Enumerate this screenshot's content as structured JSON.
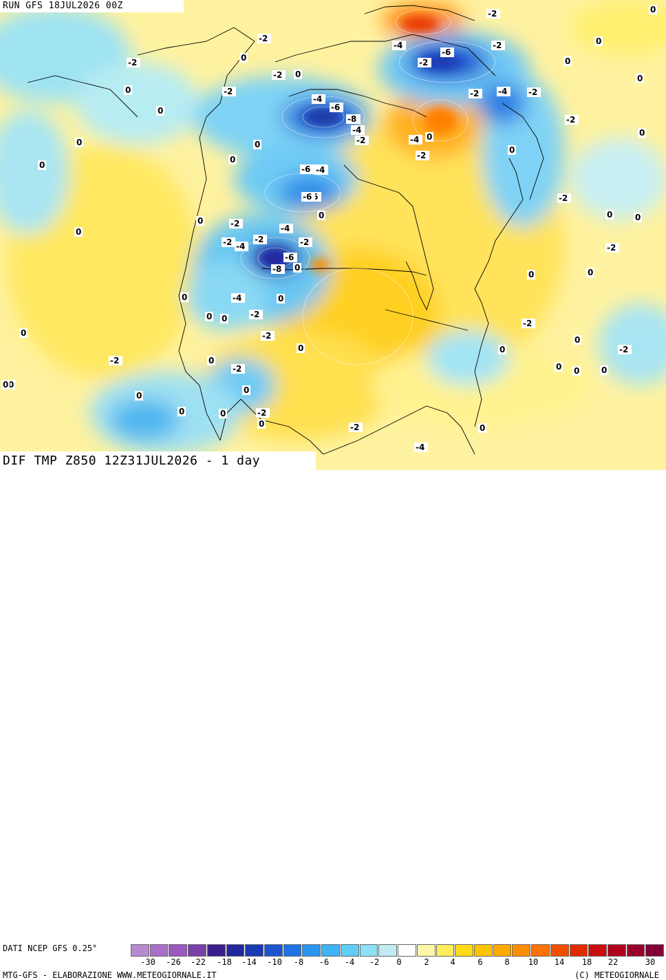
{
  "header": {
    "run": "RUN GFS 18JUL2026 00Z"
  },
  "footer": {
    "title": "DIF TMP Z850 12Z31JUL2026 - 1 day",
    "source": "DATI NCEP GFS 0.25°",
    "credit_left": "MTG-GFS - ELABORAZIONE WWW.METEOGIORNALE.IT",
    "credit_right": "(C) METEOGIORNALE"
  },
  "legend": {
    "colors": [
      "#b58ad1",
      "#a96fc9",
      "#9a58bd",
      "#7a3fa8",
      "#3a1f8f",
      "#24289e",
      "#1a3ab4",
      "#1d55d1",
      "#1f73e3",
      "#2a96f0",
      "#3fb3f5",
      "#5fcdf7",
      "#8ee0f6",
      "#c1ecf3",
      "#ffffff",
      "#fff7a8",
      "#ffee59",
      "#ffdb16",
      "#ffc400",
      "#ffaa00",
      "#ff8f00",
      "#ff7100",
      "#f24e00",
      "#e22c00",
      "#c90f0f",
      "#b0001e",
      "#98002a",
      "#830036"
    ],
    "tick_labels": [
      "-30",
      "-26",
      "-22",
      "-18",
      "-14",
      "-10",
      "-8",
      "-6",
      "-4",
      "-2",
      "0",
      "2",
      "4",
      "6",
      "8",
      "10",
      "14",
      "18",
      "22",
      "30"
    ]
  },
  "map": {
    "contour_labels": [
      "-2",
      "0",
      "-2",
      "0",
      "-4",
      "-6",
      "-8",
      "-6",
      "-4",
      "-2",
      "0",
      "-2",
      "0",
      "0",
      "0",
      "0",
      "-4",
      "-6",
      "-8",
      "-4",
      "-2",
      "0",
      "-2",
      "-4",
      "-6",
      "-2",
      "-4",
      "-4",
      "-2",
      "-2",
      "0",
      "0",
      "0",
      "0",
      "-2",
      "-2",
      "0",
      "0",
      "-2",
      "-4",
      "-6",
      "0",
      "0",
      "0",
      "0",
      "-2",
      "-2",
      "-4",
      "-2",
      "-6",
      "-8",
      "0",
      "-2",
      "-4",
      "-2",
      "0",
      "0",
      "0",
      "0",
      "-2",
      "0",
      "-2",
      "0",
      "0",
      "0",
      "0",
      "0",
      "-2",
      "0",
      "0",
      "-2",
      "0",
      "0",
      "-2",
      "-4",
      "0",
      "-2",
      "0",
      "-2",
      "0",
      "0",
      "0",
      "0",
      "-2",
      "0",
      "0",
      "-2",
      "0",
      "0"
    ]
  }
}
